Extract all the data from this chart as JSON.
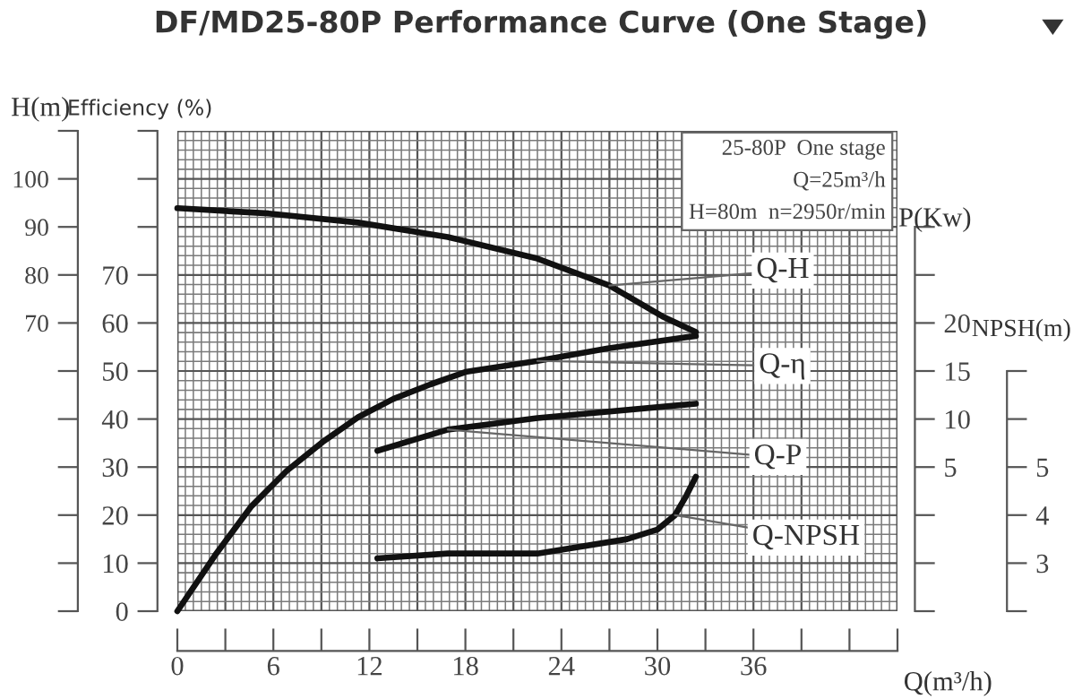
{
  "chart_data": [
    {
      "type": "line",
      "title": "DF/MD25-80P Performance Curve (One Stage)",
      "xlabel": "Q(m³/h)",
      "ylabel": "Efficiency (%)",
      "y2label": "H(m)",
      "y3label": "P(Kw)",
      "xlim": [
        0,
        45
      ],
      "xticks": [
        0,
        {
          "value": 3,
          "label": null
        },
        6,
        {
          "value": 9,
          "label": null
        },
        12,
        {
          "value": 15,
          "label": null
        },
        18,
        {
          "value": 21,
          "label": null
        },
        24,
        {
          "value": 27,
          "label": null
        },
        30,
        {
          "value": 33,
          "label": null
        },
        36,
        {
          "value": 39,
          "label": null
        },
        {
          "value": 42,
          "label": null
        },
        {
          "value": 45,
          "label": null
        }
      ],
      "ylim": [
        0,
        100
      ],
      "yticks": [
        0,
        10,
        20,
        30,
        40,
        50,
        60,
        70,
        {
          "value": 80,
          "label": null
        },
        {
          "value": 90,
          "label": null
        },
        {
          "value": 100,
          "label": null
        }
      ],
      "y2lim": [
        10,
        110
      ],
      "y2ticks": [
        {
          "value": 10,
          "label": null
        },
        {
          "value": 20,
          "label": null
        },
        {
          "value": 30,
          "label": null
        },
        {
          "value": 40,
          "label": null
        },
        {
          "value": 50,
          "label": null
        },
        {
          "value": 60,
          "label": null
        },
        70,
        80,
        90,
        100,
        {
          "value": 110,
          "label": null
        }
      ],
      "y3lim": [
        -10,
        40
      ],
      "y3ticks": [
        {
          "value": -10,
          "label": null
        },
        {
          "value": -5,
          "label": null
        },
        {
          "value": 0,
          "label": null
        },
        5,
        10,
        15,
        20,
        {
          "value": 25,
          "label": null
        },
        {
          "value": 30,
          "label": null
        }
      ],
      "grid": true,
      "marker": "none",
      "line_style": "solid",
      "series": [
        {
          "name": "Q-H",
          "color": "#111111",
          "axis": "y2",
          "x": [
            0,
            5.7,
            11.3,
            16.9,
            22.5,
            27,
            30.3,
            32.4
          ],
          "values": [
            93.9,
            92.8,
            90.9,
            87.9,
            83.4,
            77.8,
            71.4,
            68.1
          ]
        },
        {
          "name": "Q-η",
          "color": "#111111",
          "x": [
            0,
            2.35,
            4.59,
            6.83,
            9.07,
            11.3,
            13.5,
            15.8,
            18,
            22.5,
            26.9,
            32.4
          ],
          "values": [
            0,
            11.6,
            21.7,
            29.2,
            35.2,
            40.4,
            44.2,
            47.2,
            49.8,
            52.1,
            54.7,
            57.3
          ]
        },
        {
          "name": "Q-P",
          "color": "#111111",
          "axis": "y3",
          "x": [
            12.5,
            16.9,
            22.5,
            32.4
          ],
          "values": [
            6.7,
            8.9,
            10.1,
            11.6
          ]
        }
      ],
      "annotations": [
        "25-80P  One stage",
        "Q=25m³/h",
        "H=80m  n=2950r/min"
      ]
    },
    {
      "type": "line",
      "ylabel": "NPSH(m)",
      "xlim": [
        0,
        45
      ],
      "ylim": [
        2,
        12
      ],
      "yticks": [
        {
          "value": 2,
          "label": null
        },
        3,
        4,
        5,
        {
          "value": 6,
          "label": null
        },
        {
          "value": 7,
          "label": null
        }
      ],
      "tick_labels": "y",
      "marker": "none",
      "line_style": "solid",
      "series": [
        {
          "name": "Q-NPSH",
          "color": "#111111",
          "x": [
            12.5,
            16.9,
            22.5,
            28.1,
            30,
            31.1,
            31.8,
            32.4
          ],
          "values": [
            3.1,
            3.2,
            3.2,
            3.5,
            3.7,
            4.0,
            4.4,
            4.8
          ]
        }
      ]
    }
  ]
}
